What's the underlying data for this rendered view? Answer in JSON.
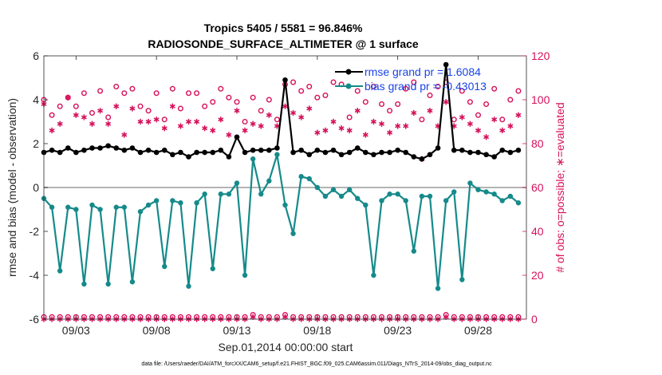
{
  "chart_data": {
    "type": "line",
    "title_lines": [
      "Tropics 5405 / 5581 = 96.846%",
      "RADIOSONDE_SURFACE_ALTIMETER @ 1 surface"
    ],
    "xlabel": "Sep.01,2014 00:00:00 start",
    "ylabel": "rmse and bias (model - observation)",
    "y2label": "# of obs: o=possible; ∗=evaluated",
    "footnote": "data file: /Users/raeder/DAI/ATM_forcXX/CAM6_setup/f.e21.FHIST_BGC.f09_025.CAM6assim.011/Diags_NTrS_2014-09/obs_diag_output.nc",
    "xlim": [
      1.0,
      31.0
    ],
    "ylim": [
      -6,
      6
    ],
    "y2lim": [
      0,
      120
    ],
    "xticks": [
      {
        "value": 3,
        "label": "09/03"
      },
      {
        "value": 8,
        "label": "09/08"
      },
      {
        "value": 13,
        "label": "09/13"
      },
      {
        "value": 18,
        "label": "09/18"
      },
      {
        "value": 23,
        "label": "09/23"
      },
      {
        "value": 28,
        "label": "09/28"
      }
    ],
    "yticks": [
      -6,
      -4,
      -2,
      0,
      2,
      4,
      6
    ],
    "y2ticks": [
      0,
      20,
      40,
      60,
      80,
      100,
      120
    ],
    "zero_line": 0,
    "x": [
      1.0,
      1.5,
      2.0,
      2.5,
      3.0,
      3.5,
      4.0,
      4.5,
      5.0,
      5.5,
      6.0,
      6.5,
      7.0,
      7.5,
      8.0,
      8.5,
      9.0,
      9.5,
      10.0,
      10.5,
      11.0,
      11.5,
      12.0,
      12.5,
      13.0,
      13.5,
      14.0,
      14.5,
      15.0,
      15.5,
      16.0,
      16.5,
      17.0,
      17.5,
      18.0,
      18.5,
      19.0,
      19.5,
      20.0,
      20.5,
      21.0,
      21.5,
      22.0,
      22.5,
      23.0,
      23.5,
      24.0,
      24.5,
      25.0,
      25.5,
      26.0,
      26.5,
      27.0,
      27.5,
      28.0,
      28.5,
      29.0,
      29.5,
      30.0,
      30.5
    ],
    "series": [
      {
        "name": "rmse",
        "legend": "rmse grand pr = 1.6084",
        "color": "#000000",
        "marker": "hexagram",
        "values": [
          1.6,
          1.7,
          1.6,
          1.8,
          1.6,
          1.7,
          1.8,
          1.8,
          1.9,
          1.8,
          1.7,
          1.8,
          1.6,
          1.7,
          1.6,
          1.7,
          1.5,
          1.6,
          1.4,
          1.6,
          1.6,
          1.6,
          1.7,
          1.4,
          2.3,
          1.6,
          1.7,
          1.7,
          1.7,
          1.8,
          4.9,
          1.6,
          1.7,
          1.5,
          1.7,
          1.6,
          1.7,
          1.5,
          1.6,
          1.8,
          1.6,
          1.5,
          1.6,
          1.6,
          1.7,
          1.6,
          1.4,
          1.3,
          1.5,
          1.8,
          5.6,
          1.7,
          1.7,
          1.6,
          1.6,
          1.5,
          1.4,
          1.7,
          1.6,
          1.7
        ]
      },
      {
        "name": "bias",
        "legend": "bias grand pr = -0.43013",
        "color": "#168a8a",
        "marker": "circle",
        "values": [
          -0.5,
          -0.9,
          -3.8,
          -0.9,
          -1.0,
          -4.4,
          -0.8,
          -1.0,
          -4.4,
          -0.9,
          -0.9,
          -4.3,
          -1.1,
          -0.8,
          -0.6,
          -3.6,
          -0.6,
          -0.7,
          -4.5,
          -0.7,
          -0.3,
          -3.7,
          -0.3,
          -0.3,
          0.2,
          -4.0,
          1.3,
          -0.3,
          0.3,
          1.5,
          -0.8,
          -2.1,
          0.5,
          0.4,
          0.0,
          -0.4,
          -0.1,
          -0.4,
          -0.1,
          -0.5,
          -0.8,
          -4.0,
          -0.6,
          -0.3,
          -0.3,
          -0.6,
          -2.9,
          -0.4,
          -0.4,
          -4.6,
          -0.6,
          -0.2,
          -4.2,
          0.2,
          -0.1,
          -0.2,
          -0.3,
          -0.6,
          -0.4,
          -0.7
        ]
      },
      {
        "name": "possible",
        "axis": "right",
        "color": "#d6105a",
        "marker": "open-circle",
        "values": [
          100,
          93,
          97,
          101,
          97,
          103,
          94,
          104,
          92,
          106,
          103,
          105,
          97,
          95,
          103,
          91,
          105,
          96,
          103,
          103,
          97,
          99,
          105,
          101,
          99,
          90,
          101,
          95,
          100,
          91,
          107,
          108,
          104,
          106,
          101,
          102,
          108,
          107,
          92,
          104,
          99,
          106,
          98,
          95,
          98,
          105,
          108,
          91,
          102,
          106,
          108,
          91,
          104,
          99,
          93,
          98,
          105,
          91,
          100,
          104
        ]
      },
      {
        "name": "evaluated",
        "axis": "right",
        "color": "#d6105a",
        "marker": "asterisk",
        "values": [
          98,
          86,
          89,
          101,
          93,
          92,
          89,
          95,
          89,
          97,
          84,
          96,
          90,
          90,
          91,
          87,
          97,
          88,
          90,
          90,
          87,
          86,
          91,
          84,
          95,
          86,
          89,
          88,
          93,
          88,
          97,
          94,
          92,
          96,
          85,
          86,
          90,
          87,
          86,
          95,
          84,
          90,
          89,
          85,
          88,
          88,
          94,
          73,
          95,
          88,
          99,
          88,
          92,
          89,
          86,
          83,
          91,
          86,
          88,
          93
        ]
      },
      {
        "name": "possible-bottom",
        "axis": "right",
        "color": "#d6105a",
        "marker": "open-circle",
        "values": [
          1,
          1,
          1,
          1,
          1,
          1,
          1,
          1,
          1,
          1,
          1,
          1,
          1,
          1,
          1,
          1,
          1,
          1,
          1,
          1,
          1,
          1,
          1,
          1,
          1,
          1,
          2,
          1,
          1,
          1,
          2,
          1,
          1,
          1,
          1,
          1,
          1,
          1,
          1,
          1,
          1,
          1,
          1,
          1,
          1,
          1,
          1,
          1,
          1,
          1,
          2,
          1,
          1,
          1,
          1,
          1,
          1,
          1,
          1,
          1
        ]
      },
      {
        "name": "evaluated-bottom",
        "axis": "right",
        "color": "#d6105a",
        "marker": "asterisk",
        "values": [
          0,
          0,
          0,
          0,
          0,
          0,
          0,
          0,
          0,
          0,
          0,
          0,
          0,
          0,
          0,
          0,
          0,
          0,
          0,
          0,
          0,
          0,
          0,
          0,
          0,
          0,
          1,
          0,
          0,
          0,
          1,
          0,
          0,
          0,
          0,
          0,
          0,
          0,
          0,
          0,
          0,
          0,
          0,
          0,
          0,
          0,
          0,
          0,
          0,
          0,
          1,
          0,
          0,
          0,
          0,
          0,
          0,
          0,
          0,
          0
        ]
      }
    ]
  }
}
